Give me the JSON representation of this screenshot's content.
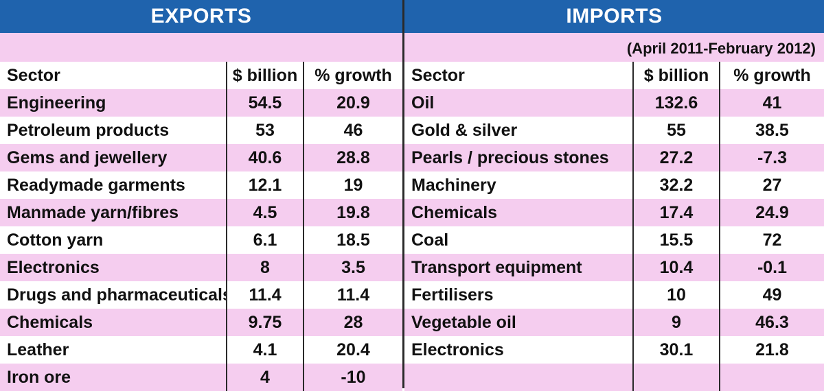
{
  "exports": {
    "title": "EXPORTS",
    "headers": [
      "Sector",
      "$ billion",
      "% growth"
    ],
    "rows": [
      [
        "Engineering",
        "54.5",
        "20.9"
      ],
      [
        "Petroleum products",
        "53",
        "46"
      ],
      [
        "Gems and jewellery",
        "40.6",
        "28.8"
      ],
      [
        "Readymade garments",
        "12.1",
        "19"
      ],
      [
        "Manmade yarn/fibres",
        "4.5",
        "19.8"
      ],
      [
        "Cotton yarn",
        "6.1",
        "18.5"
      ],
      [
        "Electronics",
        "8",
        "3.5"
      ],
      [
        "Drugs and pharmaceuticals",
        "11.4",
        "11.4"
      ],
      [
        "Chemicals",
        "9.75",
        "28"
      ],
      [
        "Leather",
        "4.1",
        "20.4"
      ],
      [
        "Iron ore",
        "4",
        "-10"
      ]
    ]
  },
  "imports": {
    "title": "IMPORTS",
    "headers": [
      "Sector",
      "$ billion",
      "% growth"
    ],
    "rows": [
      [
        "Oil",
        "132.6",
        "41"
      ],
      [
        "Gold & silver",
        "55",
        "38.5"
      ],
      [
        "Pearls / precious stones",
        "27.2",
        "-7.3"
      ],
      [
        "Machinery",
        "32.2",
        "27"
      ],
      [
        "Chemicals",
        "17.4",
        "24.9"
      ],
      [
        "Coal",
        "15.5",
        "72"
      ],
      [
        "Transport equipment",
        "10.4",
        "-0.1"
      ],
      [
        "Fertilisers",
        "10",
        "49"
      ],
      [
        "Vegetable oil",
        "9",
        "46.3"
      ],
      [
        "Electronics",
        "30.1",
        "21.8"
      ],
      [
        "",
        "",
        ""
      ]
    ]
  },
  "date_range": "(April 2011-February 2012)",
  "colors": {
    "header_blue": "#1f63ad",
    "row_pink": "#f5cdef"
  },
  "chart_data": [
    {
      "type": "table",
      "title": "EXPORTS",
      "columns": [
        "Sector",
        "$ billion",
        "% growth"
      ],
      "rows": [
        [
          "Engineering",
          54.5,
          20.9
        ],
        [
          "Petroleum products",
          53,
          46
        ],
        [
          "Gems and jewellery",
          40.6,
          28.8
        ],
        [
          "Readymade garments",
          12.1,
          19
        ],
        [
          "Manmade yarn/fibres",
          4.5,
          19.8
        ],
        [
          "Cotton yarn",
          6.1,
          18.5
        ],
        [
          "Electronics",
          8,
          3.5
        ],
        [
          "Drugs and pharmaceuticals",
          11.4,
          11.4
        ],
        [
          "Chemicals",
          9.75,
          28
        ],
        [
          "Leather",
          4.1,
          20.4
        ],
        [
          "Iron ore",
          4,
          -10
        ]
      ]
    },
    {
      "type": "table",
      "title": "IMPORTS",
      "columns": [
        "Sector",
        "$ billion",
        "% growth"
      ],
      "rows": [
        [
          "Oil",
          132.6,
          41
        ],
        [
          "Gold & silver",
          55,
          38.5
        ],
        [
          "Pearls / precious stones",
          27.2,
          -7.3
        ],
        [
          "Machinery",
          32.2,
          27
        ],
        [
          "Chemicals",
          17.4,
          24.9
        ],
        [
          "Coal",
          15.5,
          72
        ],
        [
          "Transport equipment",
          10.4,
          -0.1
        ],
        [
          "Fertilisers",
          10,
          49
        ],
        [
          "Vegetable oil",
          9,
          46.3
        ],
        [
          "Electronics",
          30.1,
          21.8
        ]
      ]
    }
  ]
}
